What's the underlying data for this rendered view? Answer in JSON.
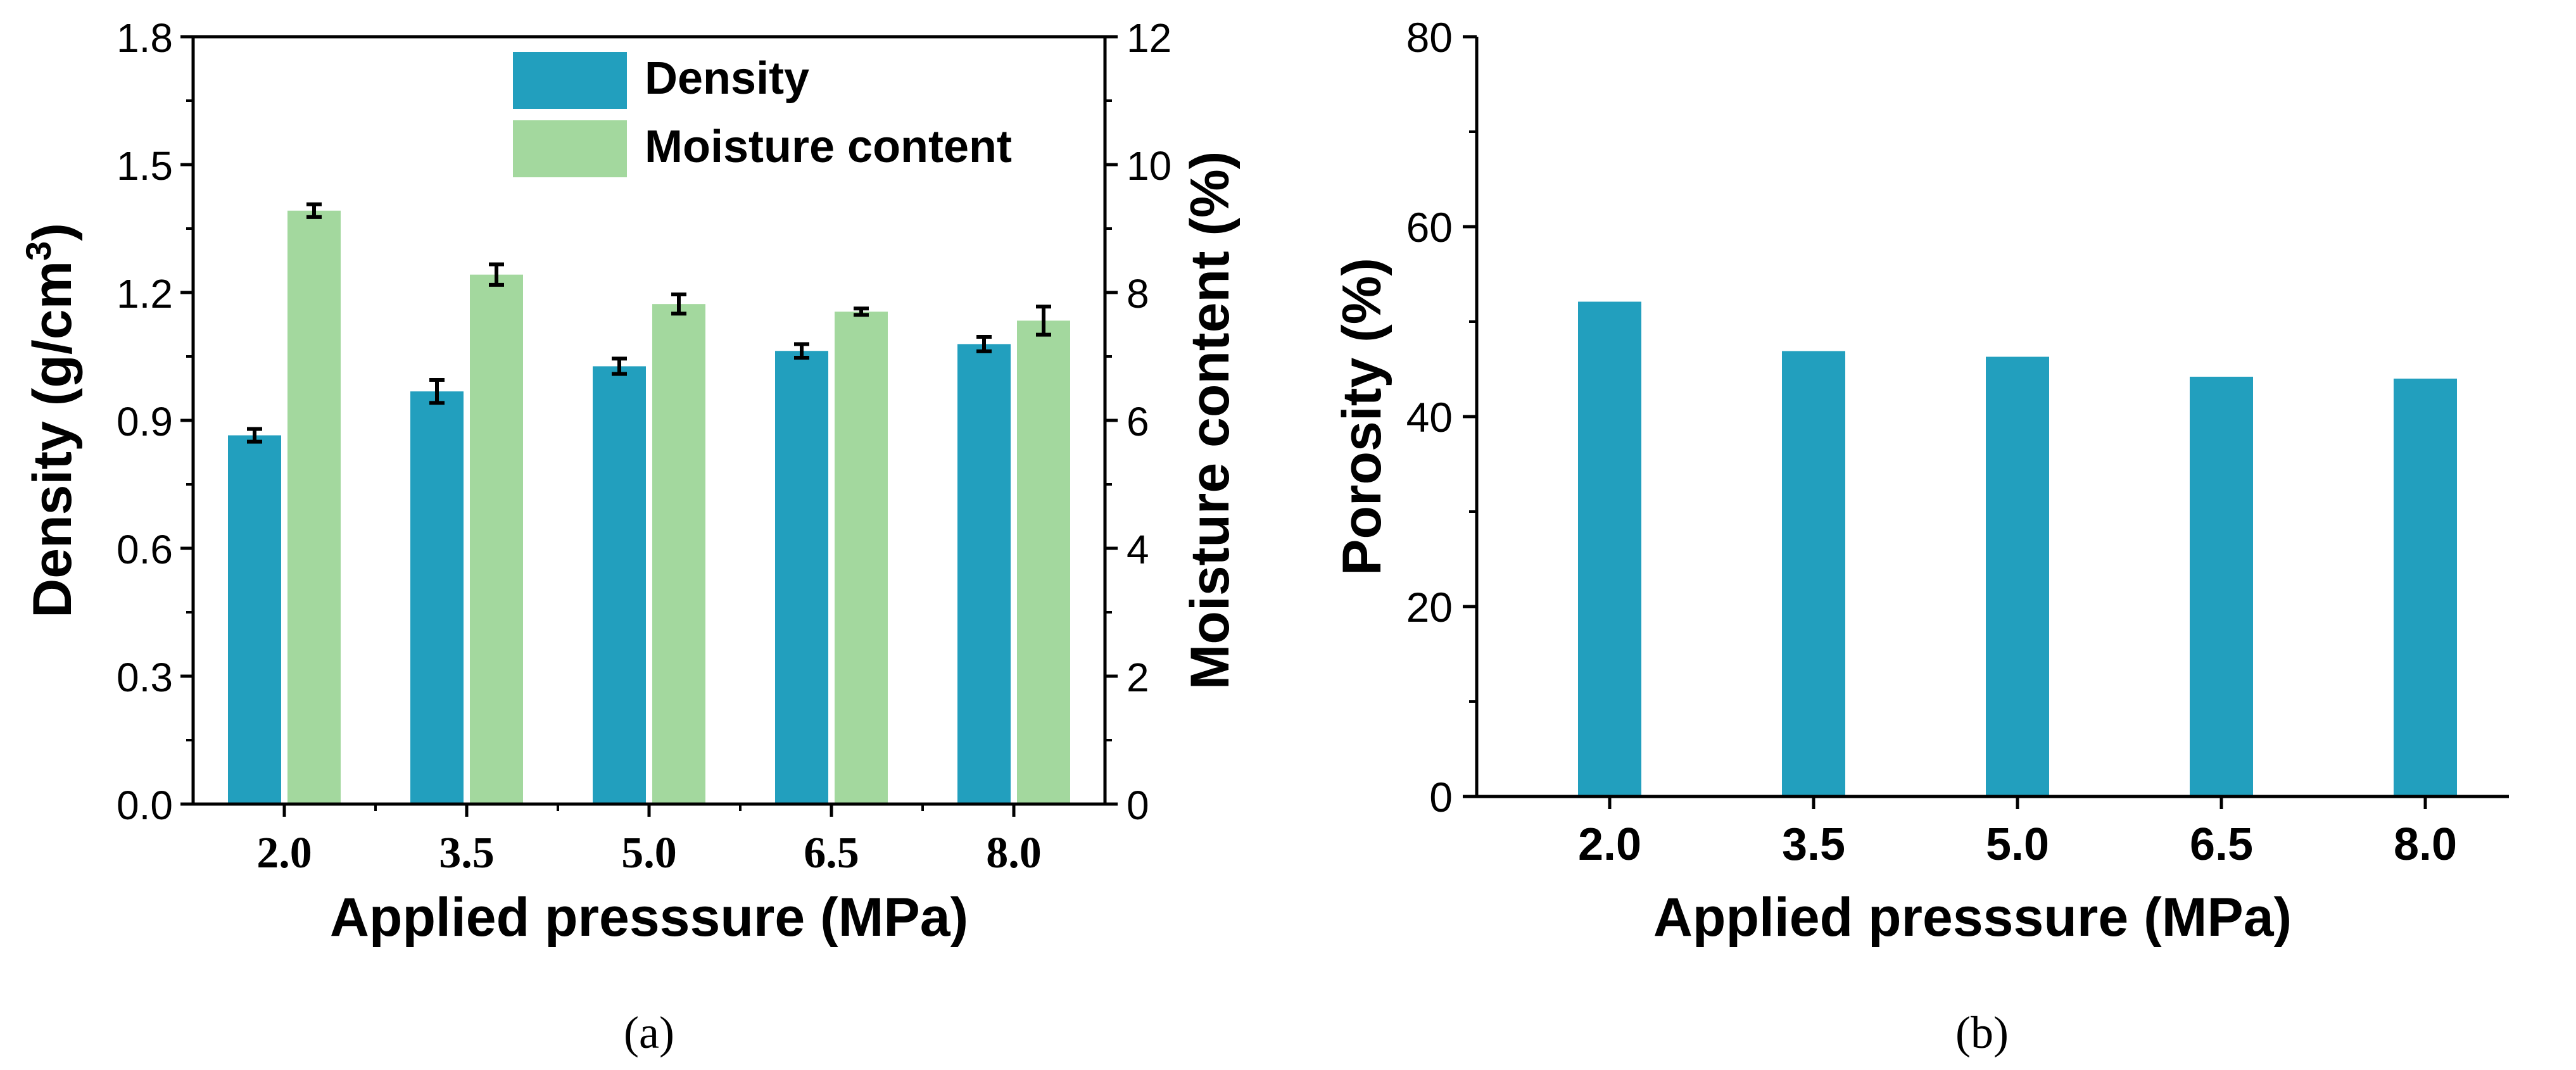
{
  "chart_data": [
    {
      "type": "bar",
      "panel_label": "(a)",
      "categories": [
        "2.0",
        "3.5",
        "5.0",
        "6.5",
        "8.0"
      ],
      "xlabel": "Applied presssure (MPa)",
      "ylabel_left": "Density (g/cm",
      "ylabel_left_sup": "3",
      "ylabel_left_end": ")",
      "ylabel_right": "Moisture content (%)",
      "ylim_left": [
        0,
        1.8
      ],
      "ylim_right": [
        0,
        12
      ],
      "yticks_left": [
        "0.0",
        "0.3",
        "0.6",
        "0.9",
        "1.2",
        "1.5",
        "1.8"
      ],
      "yticks_right": [
        "0",
        "2",
        "4",
        "6",
        "8",
        "10",
        "12"
      ],
      "legend_position": "top-right",
      "series": [
        {
          "name": "Density",
          "axis": "left",
          "color": "#229FBE",
          "values": [
            0.865,
            0.968,
            1.027,
            1.063,
            1.079
          ],
          "errors": [
            0.015,
            0.027,
            0.018,
            0.016,
            0.017
          ]
        },
        {
          "name": "Moisture content",
          "axis": "right",
          "color": "#A3D89E",
          "values": [
            9.28,
            8.28,
            7.82,
            7.7,
            7.56
          ],
          "errors": [
            0.1,
            0.16,
            0.15,
            0.05,
            0.22
          ]
        }
      ]
    },
    {
      "type": "bar",
      "panel_label": "(b)",
      "categories": [
        "2.0",
        "3.5",
        "5.0",
        "6.5",
        "8.0"
      ],
      "xlabel": "Applied presssure (MPa)",
      "ylabel": "Porosity (%)",
      "ylim": [
        0,
        80
      ],
      "yticks": [
        "0",
        "20",
        "40",
        "60",
        "80"
      ],
      "series": [
        {
          "name": "Porosity",
          "color": "#229FBE",
          "values": [
            52.1,
            46.9,
            46.3,
            44.2,
            44.0
          ]
        }
      ]
    }
  ]
}
